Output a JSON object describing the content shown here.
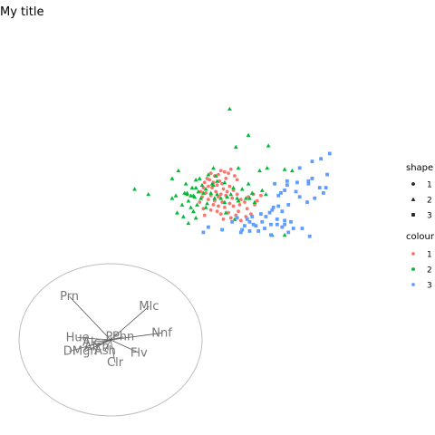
{
  "chart_data": {
    "type": "scatter",
    "title": "My title",
    "xlabel": "",
    "ylabel": "",
    "grid": false,
    "legend_position": "right",
    "legends": {
      "shape": {
        "title": "shape",
        "labels": [
          "1",
          "2",
          "3"
        ]
      },
      "colour": {
        "title": "colour",
        "labels": [
          "1",
          "2",
          "3"
        ]
      }
    },
    "colors": {
      "1": "#F8766D",
      "2": "#00BA38",
      "3": "#619CFF"
    },
    "series": [
      {
        "group": "1",
        "points": [
          [
            2.3,
            1.5
          ],
          [
            2.6,
            1.4
          ],
          [
            2.9,
            1.3
          ],
          [
            3.1,
            1.6
          ],
          [
            2.1,
            1.2
          ],
          [
            1.8,
            1.1
          ],
          [
            1.5,
            1.3
          ],
          [
            2.7,
            0.9
          ],
          [
            3.4,
            1.1
          ],
          [
            3.6,
            0.8
          ],
          [
            2.2,
            0.7
          ],
          [
            1.7,
            0.6
          ],
          [
            1.4,
            0.8
          ],
          [
            2.4,
            0.5
          ],
          [
            2.0,
            0.4
          ],
          [
            1.2,
            0.9
          ],
          [
            1.0,
            0.6
          ],
          [
            1.6,
            0.2
          ],
          [
            2.5,
            0.1
          ],
          [
            3.0,
            0.3
          ],
          [
            3.3,
            0.0
          ],
          [
            2.8,
            -0.1
          ],
          [
            1.3,
            0.3
          ],
          [
            0.9,
            0.2
          ],
          [
            1.9,
            -0.1
          ],
          [
            2.3,
            -0.3
          ],
          [
            1.1,
            -0.2
          ],
          [
            0.7,
            -0.1
          ],
          [
            1.5,
            -0.4
          ],
          [
            2.1,
            -0.5
          ],
          [
            2.7,
            -0.4
          ],
          [
            3.2,
            -0.6
          ],
          [
            3.6,
            -0.3
          ],
          [
            3.9,
            -0.7
          ],
          [
            1.8,
            -0.8
          ],
          [
            1.3,
            -0.7
          ],
          [
            0.8,
            -0.5
          ],
          [
            2.4,
            -0.9
          ],
          [
            3.0,
            -1.0
          ],
          [
            2.1,
            -1.2
          ],
          [
            2.6,
            -1.3
          ],
          [
            3.3,
            -1.2
          ],
          [
            3.8,
            -1.1
          ],
          [
            4.2,
            -0.9
          ],
          [
            4.5,
            -0.5
          ],
          [
            4.9,
            -0.3
          ],
          [
            5.2,
            -0.8
          ],
          [
            5.5,
            -0.4
          ],
          [
            5.0,
            -1.1
          ],
          [
            4.4,
            -1.4
          ],
          [
            3.7,
            -1.6
          ],
          [
            2.9,
            -1.7
          ],
          [
            2.3,
            -1.8
          ],
          [
            1.5,
            -1.5
          ],
          [
            0.9,
            -1.4
          ],
          [
            1.0,
            -1.9
          ],
          [
            3.5,
            -1.9
          ],
          [
            4.7,
            -1.8
          ],
          [
            3.1,
            -2.1
          ],
          [
            2.5,
            -2.2
          ],
          [
            3.9,
            -2.3
          ],
          [
            4.3,
            -2.0
          ],
          [
            1.7,
            -1.1
          ],
          [
            2.0,
            -1.6
          ],
          [
            0.6,
            -0.9
          ]
        ]
      },
      {
        "group": "2",
        "points": [
          [
            3.0,
            6.2
          ],
          [
            4.5,
            4.2
          ],
          [
            3.5,
            3.3
          ],
          [
            6.1,
            3.4
          ],
          [
            1.7,
            1.7
          ],
          [
            3.7,
            1.7
          ],
          [
            5.4,
            1.5
          ],
          [
            6.0,
            1.7
          ],
          [
            7.4,
            1.6
          ],
          [
            8.0,
            1.5
          ],
          [
            -1.1,
            1.5
          ],
          [
            0.3,
            0.8
          ],
          [
            1.3,
            1.2
          ],
          [
            -4.6,
            0.1
          ],
          [
            -3.5,
            -0.3
          ],
          [
            -1.3,
            -0.4
          ],
          [
            -0.4,
            -0.2
          ],
          [
            0.2,
            -0.5
          ],
          [
            -1.6,
            0.9
          ],
          [
            0.3,
            0.2
          ],
          [
            0.8,
            0.4
          ],
          [
            0.9,
            -0.2
          ],
          [
            1.1,
            0.1
          ],
          [
            0.4,
            -1.1
          ],
          [
            -0.3,
            -0.8
          ],
          [
            -0.1,
            -0.4
          ],
          [
            0.5,
            -0.1
          ],
          [
            0.0,
            0.2
          ],
          [
            -0.6,
            -0.2
          ],
          [
            1.6,
            0.5
          ],
          [
            2.0,
            0.7
          ],
          [
            2.6,
            0.6
          ],
          [
            3.3,
            0.2
          ],
          [
            3.6,
            -0.6
          ],
          [
            4.5,
            0.5
          ],
          [
            4.6,
            -0.6
          ],
          [
            5.0,
            -0.9
          ],
          [
            4.8,
            -0.2
          ],
          [
            4.3,
            -0.6
          ],
          [
            0.6,
            0.9
          ],
          [
            1.5,
            -0.2
          ],
          [
            2.0,
            -0.3
          ],
          [
            2.3,
            -0.6
          ],
          [
            1.8,
            -0.6
          ],
          [
            2.8,
            -0.5
          ],
          [
            3.1,
            -0.3
          ],
          [
            -0.8,
            -1.1
          ],
          [
            0.1,
            -1.6
          ],
          [
            -0.7,
            -2.0
          ],
          [
            -1.2,
            -1.7
          ],
          [
            -0.3,
            -2.5
          ],
          [
            -1.6,
            -0.6
          ],
          [
            3.7,
            -0.8
          ],
          [
            1.1,
            -1.3
          ],
          [
            1.2,
            -1.0
          ],
          [
            2.6,
            -0.9
          ],
          [
            0.3,
            -2.1
          ],
          [
            -0.1,
            -1.3
          ],
          [
            6.4,
            -3.4
          ],
          [
            7.4,
            -3.4
          ],
          [
            -0.5,
            0.5
          ],
          [
            3.4,
            -2.2
          ],
          [
            2.7,
            -1.7
          ],
          [
            1.7,
            0.4
          ],
          [
            0.7,
            -0.6
          ],
          [
            -0.4,
            -0.3
          ],
          [
            1.9,
            1.1
          ],
          [
            4.0,
            0.1
          ],
          [
            5.6,
            0.0
          ],
          [
            5.9,
            -0.3
          ],
          [
            0.1,
            -0.4
          ]
        ]
      },
      {
        "group": "3",
        "points": [
          [
            11.0,
            2.8
          ],
          [
            10.3,
            2.4
          ],
          [
            9.6,
            2.2
          ],
          [
            8.6,
            1.7
          ],
          [
            10.8,
            1.2
          ],
          [
            9.6,
            0.9
          ],
          [
            9.3,
            0.7
          ],
          [
            8.4,
            0.6
          ],
          [
            7.6,
            0.4
          ],
          [
            7.6,
            0.7
          ],
          [
            9.3,
            0.5
          ],
          [
            6.6,
            0.5
          ],
          [
            10.7,
            0.2
          ],
          [
            10.2,
            0.2
          ],
          [
            10.5,
            -0.2
          ],
          [
            9.8,
            -0.6
          ],
          [
            8.3,
            -0.1
          ],
          [
            7.4,
            0.0
          ],
          [
            7.1,
            -0.2
          ],
          [
            6.9,
            -0.4
          ],
          [
            8.6,
            -0.5
          ],
          [
            9.2,
            -0.9
          ],
          [
            7.7,
            -1.1
          ],
          [
            6.9,
            -1.2
          ],
          [
            6.5,
            -1.3
          ],
          [
            6.4,
            -1.5
          ],
          [
            7.2,
            -1.6
          ],
          [
            6.2,
            -1.7
          ],
          [
            5.5,
            -1.8
          ],
          [
            5.9,
            -2.0
          ],
          [
            5.6,
            -2.4
          ],
          [
            4.6,
            -2.4
          ],
          [
            4.9,
            -2.6
          ],
          [
            4.8,
            -2.0
          ],
          [
            4.2,
            -2.7
          ],
          [
            4.4,
            -2.2
          ],
          [
            3.6,
            -2.1
          ],
          [
            3.9,
            -3.2
          ],
          [
            7.4,
            -2.3
          ],
          [
            6.8,
            -2.6
          ],
          [
            7.9,
            -2.4
          ],
          [
            8.1,
            -2.9
          ],
          [
            7.4,
            -2.6
          ],
          [
            6.3,
            -3.4
          ],
          [
            4.6,
            -3.1
          ],
          [
            0.9,
            -3.2
          ],
          [
            1.3,
            -2.8
          ],
          [
            2.4,
            -3.0
          ],
          [
            3.2,
            -2.4
          ],
          [
            4.0,
            -3.0
          ],
          [
            5.3,
            -3.1
          ],
          [
            6.8,
            -2.2
          ],
          [
            7.7,
            -3.2
          ],
          [
            8.8,
            -2.9
          ],
          [
            9.4,
            -3.5
          ],
          [
            5.8,
            -2.9
          ],
          [
            7.2,
            -2.8
          ],
          [
            5.1,
            -2.7
          ],
          [
            6.3,
            -2.6
          ]
        ]
      }
    ],
    "biplot": {
      "circle": {
        "center": [
          0.0,
          0.0
        ],
        "radius": 1.0
      },
      "loadings": [
        {
          "label": "Prn",
          "x": -0.45,
          "y": 0.57
        },
        {
          "label": "Mlc",
          "x": 0.42,
          "y": 0.44
        },
        {
          "label": "Nnf",
          "x": 0.56,
          "y": 0.09
        },
        {
          "label": "Hue",
          "x": -0.36,
          "y": 0.03
        },
        {
          "label": "Alc",
          "x": -0.21,
          "y": -0.03
        },
        {
          "label": "Alch",
          "x": -0.15,
          "y": -0.09
        },
        {
          "label": "Dl",
          "x": -0.45,
          "y": -0.15
        },
        {
          "label": "Mgn",
          "x": -0.28,
          "y": -0.15
        },
        {
          "label": "Ash",
          "x": -0.06,
          "y": -0.14
        },
        {
          "label": "Clr",
          "x": 0.05,
          "y": -0.3
        },
        {
          "label": "Flv",
          "x": 0.31,
          "y": -0.17
        },
        {
          "label": "Phn",
          "x": 0.14,
          "y": 0.04
        },
        {
          "label": "Pr",
          "x": 0.01,
          "y": 0.04
        }
      ]
    }
  }
}
